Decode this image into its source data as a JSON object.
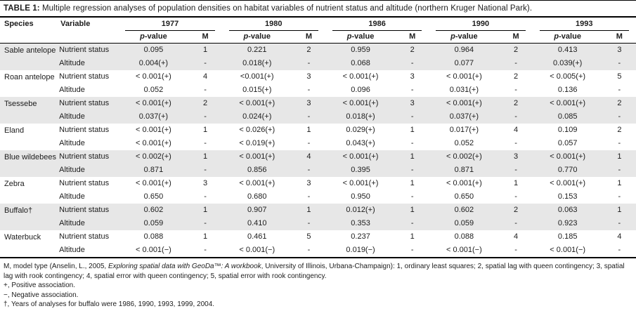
{
  "title": {
    "label": "TABLE 1:",
    "text": "Multiple regression analyses of population densities on habitat variables of nutrient status and altitude (northern Kruger National Park)."
  },
  "header": {
    "species": "Species",
    "variable": "Variable",
    "years": [
      "1977",
      "1980",
      "1986",
      "1990",
      "1993"
    ],
    "p_italic": "p",
    "p_rest": "-value",
    "m_label": "M"
  },
  "rows": [
    {
      "species": "Sable antelope",
      "shaded": true,
      "variables": [
        {
          "name": "Nutrient status",
          "cells": [
            {
              "p": "0.095",
              "m": "1"
            },
            {
              "p": "0.221",
              "m": "2"
            },
            {
              "p": "0.959",
              "m": "2"
            },
            {
              "p": "0.964",
              "m": "2"
            },
            {
              "p": "0.413",
              "m": "3"
            }
          ]
        },
        {
          "name": "Altitude",
          "cells": [
            {
              "p": "0.004(+)",
              "m": "-"
            },
            {
              "p": "0.018(+)",
              "m": "-"
            },
            {
              "p": "0.068",
              "m": "-"
            },
            {
              "p": "0.077",
              "m": "-"
            },
            {
              "p": "0.039(+)",
              "m": "-"
            }
          ]
        }
      ]
    },
    {
      "species": "Roan antelope",
      "shaded": false,
      "variables": [
        {
          "name": "Nutrient status",
          "cells": [
            {
              "p": "< 0.001(+)",
              "m": "4"
            },
            {
              "p": "<0.001(+)",
              "m": "3"
            },
            {
              "p": "< 0.001(+)",
              "m": "3"
            },
            {
              "p": "< 0.001(+)",
              "m": "2"
            },
            {
              "p": "< 0.005(+)",
              "m": "5"
            }
          ]
        },
        {
          "name": "Altitude",
          "cells": [
            {
              "p": "0.052",
              "m": "-"
            },
            {
              "p": "0.015(+)",
              "m": "-"
            },
            {
              "p": "0.096",
              "m": "-"
            },
            {
              "p": "0.031(+)",
              "m": "-"
            },
            {
              "p": "0.136",
              "m": "-"
            }
          ]
        }
      ]
    },
    {
      "species": "Tsessebe",
      "shaded": true,
      "variables": [
        {
          "name": "Nutrient status",
          "cells": [
            {
              "p": "< 0.001(+)",
              "m": "2"
            },
            {
              "p": "< 0.001(+)",
              "m": "3"
            },
            {
              "p": "< 0.001(+)",
              "m": "3"
            },
            {
              "p": "< 0.001(+)",
              "m": "2"
            },
            {
              "p": "< 0.001(+)",
              "m": "2"
            }
          ]
        },
        {
          "name": "Altitude",
          "cells": [
            {
              "p": "0.037(+)",
              "m": "-"
            },
            {
              "p": "0.024(+)",
              "m": "-"
            },
            {
              "p": "0.018(+)",
              "m": "-"
            },
            {
              "p": "0.037(+)",
              "m": "-"
            },
            {
              "p": "0.085",
              "m": "-"
            }
          ]
        }
      ]
    },
    {
      "species": "Eland",
      "shaded": false,
      "variables": [
        {
          "name": "Nutrient status",
          "cells": [
            {
              "p": "< 0.001(+)",
              "m": "1"
            },
            {
              "p": "< 0.026(+)",
              "m": "1"
            },
            {
              "p": "0.029(+)",
              "m": "1"
            },
            {
              "p": "0.017(+)",
              "m": "4"
            },
            {
              "p": "0.109",
              "m": "2"
            }
          ]
        },
        {
          "name": "Altitude",
          "cells": [
            {
              "p": "< 0.001(+)",
              "m": "-"
            },
            {
              "p": "< 0.019(+)",
              "m": "-"
            },
            {
              "p": "0.043(+)",
              "m": "-"
            },
            {
              "p": "0.052",
              "m": "-"
            },
            {
              "p": "0.057",
              "m": "-"
            }
          ]
        }
      ]
    },
    {
      "species": "Blue wildebeest",
      "shaded": true,
      "variables": [
        {
          "name": "Nutrient status",
          "cells": [
            {
              "p": "< 0.002(+)",
              "m": "1"
            },
            {
              "p": "< 0.001(+)",
              "m": "4"
            },
            {
              "p": "< 0.001(+)",
              "m": "1"
            },
            {
              "p": "< 0.002(+)",
              "m": "3"
            },
            {
              "p": "< 0.001(+)",
              "m": "1"
            }
          ]
        },
        {
          "name": "Altitude",
          "cells": [
            {
              "p": "0.871",
              "m": "-"
            },
            {
              "p": "0.856",
              "m": "-"
            },
            {
              "p": "0.395",
              "m": "-"
            },
            {
              "p": "0.871",
              "m": "-"
            },
            {
              "p": "0.770",
              "m": "-"
            }
          ]
        }
      ]
    },
    {
      "species": "Zebra",
      "shaded": false,
      "variables": [
        {
          "name": "Nutrient status",
          "cells": [
            {
              "p": "< 0.001(+)",
              "m": "3"
            },
            {
              "p": "< 0.001(+)",
              "m": "3"
            },
            {
              "p": "< 0.001(+)",
              "m": "1"
            },
            {
              "p": "< 0.001(+)",
              "m": "1"
            },
            {
              "p": "< 0.001(+)",
              "m": "1"
            }
          ]
        },
        {
          "name": "Altitude",
          "cells": [
            {
              "p": "0.650",
              "m": "-"
            },
            {
              "p": "0.680",
              "m": "-"
            },
            {
              "p": "0.950",
              "m": "-"
            },
            {
              "p": "0.650",
              "m": "-"
            },
            {
              "p": "0.153",
              "m": "-"
            }
          ]
        }
      ]
    },
    {
      "species": "Buffalo†",
      "shaded": true,
      "variables": [
        {
          "name": "Nutrient status",
          "cells": [
            {
              "p": "0.602",
              "m": "1"
            },
            {
              "p": "0.907",
              "m": "1"
            },
            {
              "p": "0.012(+)",
              "m": "1"
            },
            {
              "p": "0.602",
              "m": "2"
            },
            {
              "p": "0.063",
              "m": "1"
            }
          ]
        },
        {
          "name": "Altitude",
          "cells": [
            {
              "p": "0.059",
              "m": "-"
            },
            {
              "p": "0.410",
              "m": "-"
            },
            {
              "p": "0.353",
              "m": "-"
            },
            {
              "p": "0.059",
              "m": "-"
            },
            {
              "p": "0.923",
              "m": "-"
            }
          ]
        }
      ]
    },
    {
      "species": "Waterbuck",
      "shaded": false,
      "variables": [
        {
          "name": "Nutrient status",
          "cells": [
            {
              "p": "0.088",
              "m": "1"
            },
            {
              "p": "0.461",
              "m": "5"
            },
            {
              "p": "0.237",
              "m": "1"
            },
            {
              "p": "0.088",
              "m": "4"
            },
            {
              "p": "0.185",
              "m": "4"
            }
          ]
        },
        {
          "name": "Altitude",
          "cells": [
            {
              "p": "< 0.001(−)",
              "m": "-"
            },
            {
              "p": "< 0.001(−)",
              "m": "-"
            },
            {
              "p": "0.019(−)",
              "m": "-"
            },
            {
              "p": "< 0.001(−)",
              "m": "-"
            },
            {
              "p": "< 0.001(−)",
              "m": "-"
            }
          ]
        }
      ]
    }
  ],
  "footnotes": {
    "model": {
      "pre": "M, model type (Anselin, L., 2005, ",
      "italic": "Exploring spatial data with GeoDa™: A workbook",
      "post": ", University of Illinois, Urbana-Champaign): 1, ordinary least squares; 2, spatial lag with queen contingency; 3, spatial lag with rook contingency; 4, spatial error with queen contingency; 5, spatial error with rook contingency."
    },
    "positive": "+, Positive association.",
    "negative": "−, Negative association.",
    "dagger": "†, Years of analyses for buffalo were 1986, 1990, 1993, 1999, 2004."
  },
  "colors": {
    "row_shade": "#e7e7e7",
    "rule": "#000000",
    "ink": "#1c1c1c"
  }
}
